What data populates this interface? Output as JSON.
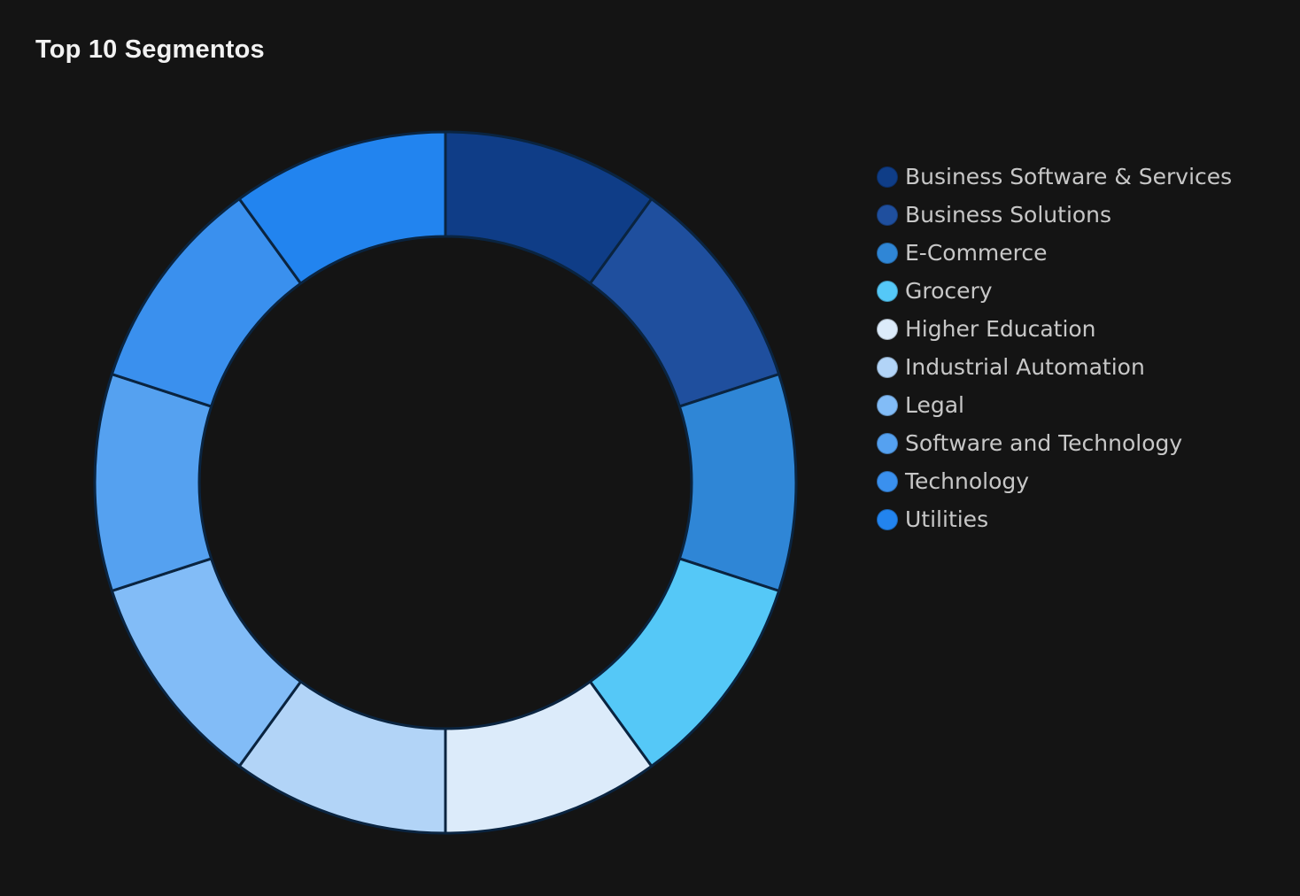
{
  "chart_data": {
    "type": "pie",
    "variant": "donut",
    "title": "Top 10 Segmentos",
    "categories": [
      "Business Software & Services",
      "Business Solutions",
      "E-Commerce",
      "Grocery",
      "Higher Education",
      "Industrial Automation",
      "Legal",
      "Software and Technology",
      "Technology",
      "Utilities"
    ],
    "values": [
      1,
      1,
      1,
      1,
      1,
      1,
      1,
      1,
      1,
      1
    ],
    "colors": [
      "#0f3d87",
      "#1f4f9e",
      "#2f86d6",
      "#55c8f7",
      "#dcebfa",
      "#b2d4f7",
      "#82bcf7",
      "#55a1f0",
      "#3a90ee",
      "#2284ef"
    ],
    "legend_position": "right",
    "slice_border_color": "#0a2440"
  }
}
